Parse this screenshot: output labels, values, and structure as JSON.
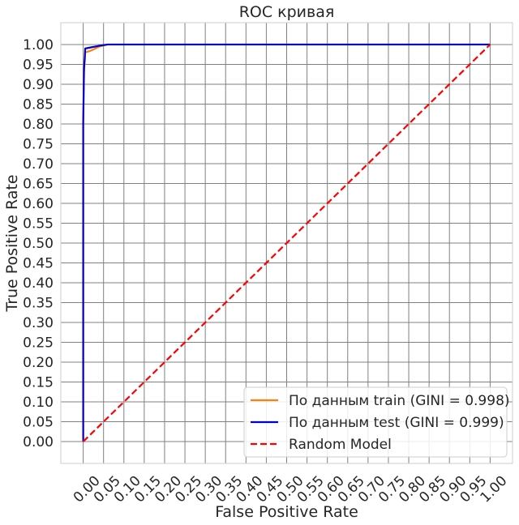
{
  "chart_data": {
    "type": "line",
    "title": "ROC кривая",
    "xlabel": "False Positive Rate",
    "ylabel": "True Positive Rate",
    "xlim": [
      -0.055,
      1.055
    ],
    "ylim": [
      -0.055,
      1.055
    ],
    "x_ticks": [
      0.0,
      0.05,
      0.1,
      0.15,
      0.2,
      0.25,
      0.3,
      0.35,
      0.4,
      0.45,
      0.5,
      0.55,
      0.6,
      0.65,
      0.7,
      0.75,
      0.8,
      0.85,
      0.9,
      0.95,
      1.0
    ],
    "x_tick_labels": [
      "0.00",
      "0.05",
      "0.10",
      "0.15",
      "0.20",
      "0.25",
      "0.30",
      "0.35",
      "0.40",
      "0.45",
      "0.50",
      "0.55",
      "0.60",
      "0.65",
      "0.70",
      "0.75",
      "0.80",
      "0.85",
      "0.90",
      "0.95",
      "1.00"
    ],
    "y_ticks": [
      0.0,
      0.05,
      0.1,
      0.15,
      0.2,
      0.25,
      0.3,
      0.35,
      0.4,
      0.45,
      0.5,
      0.55,
      0.6,
      0.65,
      0.7,
      0.75,
      0.8,
      0.85,
      0.9,
      0.95,
      1.0
    ],
    "y_tick_labels": [
      "0.00",
      "0.05",
      "0.10",
      "0.15",
      "0.20",
      "0.25",
      "0.30",
      "0.35",
      "0.40",
      "0.45",
      "0.50",
      "0.55",
      "0.60",
      "0.65",
      "0.70",
      "0.75",
      "0.80",
      "0.85",
      "0.90",
      "0.95",
      "1.00"
    ],
    "grid": true,
    "legend_position": "bottom-right",
    "series": [
      {
        "name": "По данным train (GINI = 0.998)",
        "color": "#ff7f0e",
        "style": "solid",
        "x": [
          0.0,
          0.0,
          0.002,
          0.004,
          0.005,
          0.02,
          0.04,
          0.06,
          0.07,
          1.0
        ],
        "y": [
          0.0,
          0.8,
          0.93,
          0.96,
          0.98,
          0.985,
          0.995,
          1.0,
          1.0,
          1.0
        ]
      },
      {
        "name": "По данным test (GINI = 0.999)",
        "color": "#0000cc",
        "style": "solid",
        "x": [
          0.0,
          0.0,
          0.002,
          0.004,
          0.005,
          0.02,
          0.04,
          0.06,
          0.07,
          1.0
        ],
        "y": [
          0.0,
          0.8,
          0.94,
          0.97,
          0.99,
          0.993,
          0.997,
          1.0,
          1.0,
          1.0
        ]
      },
      {
        "name": "Random Model",
        "color": "#ff0000",
        "style": "dashed",
        "x": [
          0.0,
          1.0
        ],
        "y": [
          0.0,
          1.0
        ]
      }
    ]
  }
}
